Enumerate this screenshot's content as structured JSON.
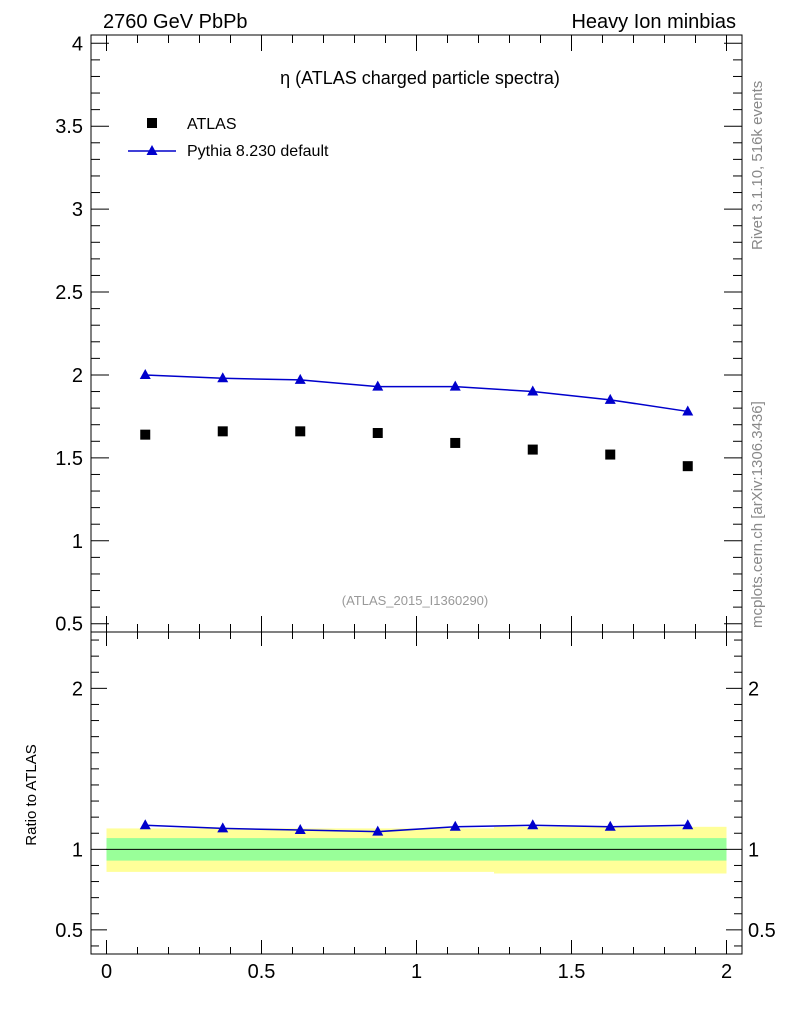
{
  "header": {
    "left": "2760 GeV PbPb",
    "right": "Heavy Ion minbias"
  },
  "side_labels": {
    "rivet": "Rivet 3.1.10,  516k events",
    "mcplots": "mcplots.cern.ch [arXiv:1306.3436]"
  },
  "chart_data": [
    {
      "type": "scatter",
      "title": "η (ATLAS charged particle spectra)",
      "watermark": "(ATLAS_2015_I1360290)",
      "legend_position": "top-left",
      "xlim": [
        -0.05,
        2.05
      ],
      "ylim": [
        0.45,
        4.05
      ],
      "x_ticks": [
        0,
        0.5,
        1,
        1.5,
        2
      ],
      "y_ticks": [
        0.5,
        1,
        1.5,
        2,
        2.5,
        3,
        3.5,
        4
      ],
      "y_tick_labels": [
        "0.5",
        "1",
        "1.5",
        "2",
        "2.5",
        "3",
        "3.5",
        "4"
      ],
      "series": [
        {
          "name": "ATLAS",
          "color": "#000000",
          "marker": "square",
          "x": [
            0.125,
            0.375,
            0.625,
            0.875,
            1.125,
            1.375,
            1.625,
            1.875
          ],
          "y": [
            1.64,
            1.66,
            1.66,
            1.65,
            1.59,
            1.55,
            1.52,
            1.45
          ]
        },
        {
          "name": "Pythia 8.230 default",
          "color": "#0000cc",
          "marker": "triangle",
          "x": [
            0.125,
            0.375,
            0.625,
            0.875,
            1.125,
            1.375,
            1.625,
            1.875
          ],
          "y": [
            2.0,
            1.98,
            1.97,
            1.93,
            1.93,
            1.9,
            1.85,
            1.78
          ]
        }
      ]
    },
    {
      "type": "line",
      "ylabel": "Ratio to ATLAS",
      "xlim": [
        -0.05,
        2.05
      ],
      "ylim": [
        0.35,
        2.35
      ],
      "x_ticks": [
        0,
        0.5,
        1,
        1.5,
        2
      ],
      "x_tick_labels": [
        "0",
        "0.5",
        "1",
        "1.5",
        "2"
      ],
      "y_ticks": [
        0.5,
        1,
        2
      ],
      "y_tick_labels": [
        "0.5",
        "1",
        "2"
      ],
      "bands": {
        "bin_edges": [
          0,
          0.25,
          0.5,
          0.75,
          1,
          1.25,
          1.5,
          1.75,
          2
        ],
        "yellow_color": "#ffff99",
        "green_color": "#99ff99",
        "yellow_low": [
          0.86,
          0.86,
          0.86,
          0.86,
          0.86,
          0.85,
          0.85,
          0.85
        ],
        "yellow_high": [
          1.13,
          1.13,
          1.13,
          1.13,
          1.13,
          1.14,
          1.14,
          1.14
        ],
        "green_low": [
          0.93,
          0.93,
          0.93,
          0.93,
          0.93,
          0.93,
          0.93,
          0.93
        ],
        "green_high": [
          1.07,
          1.07,
          1.07,
          1.07,
          1.07,
          1.07,
          1.07,
          1.07
        ]
      },
      "reference_line": 1.0,
      "series": [
        {
          "name": "Pythia 8.230 default",
          "color": "#0000cc",
          "marker": "triangle",
          "x": [
            0.125,
            0.375,
            0.625,
            0.875,
            1.125,
            1.375,
            1.625,
            1.875
          ],
          "y": [
            1.15,
            1.13,
            1.12,
            1.11,
            1.14,
            1.15,
            1.14,
            1.15
          ]
        }
      ]
    }
  ]
}
